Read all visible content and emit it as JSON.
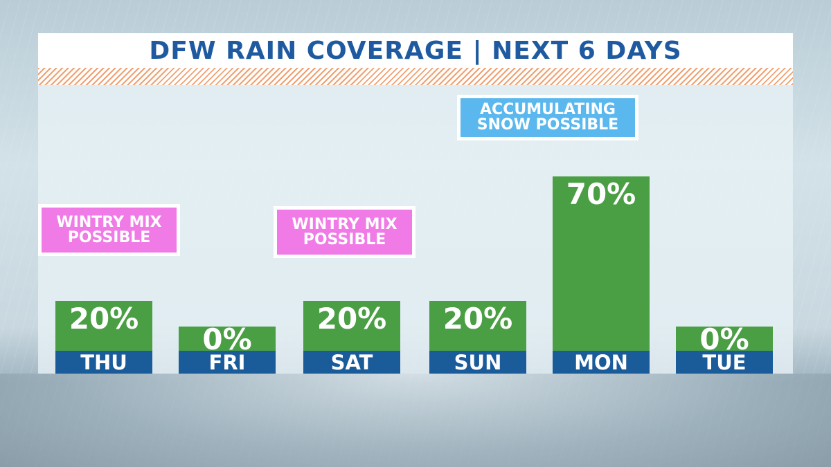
{
  "title": "DFW RAIN COVERAGE | NEXT 6 DAYS",
  "colors": {
    "title": "#1f5aa0",
    "bar": "#4a9e43",
    "day_band": "#1a5b9a",
    "wintry": "#f07be6",
    "snow": "#5ab8ee",
    "hatch": "#f0a070"
  },
  "chart_data": {
    "type": "bar",
    "title": "DFW RAIN COVERAGE | NEXT 6 DAYS",
    "categories": [
      "THU",
      "FRI",
      "SAT",
      "SUN",
      "MON",
      "TUE"
    ],
    "values": [
      20,
      0,
      20,
      20,
      70,
      0
    ],
    "data_labels": [
      "20%",
      "0%",
      "20%",
      "20%",
      "70%",
      "0%"
    ],
    "ylim": [
      0,
      100
    ],
    "grid": false,
    "legend": "none",
    "annotations": [
      {
        "category": "THU",
        "lines": [
          "WINTRY MIX",
          "POSSIBLE"
        ],
        "kind": "wintry"
      },
      {
        "category": "SAT",
        "lines": [
          "WINTRY MIX",
          "POSSIBLE"
        ],
        "kind": "wintry"
      },
      {
        "category": "MON",
        "lines": [
          "ACCUMULATING",
          "SNOW POSSIBLE"
        ],
        "kind": "snow"
      }
    ]
  }
}
